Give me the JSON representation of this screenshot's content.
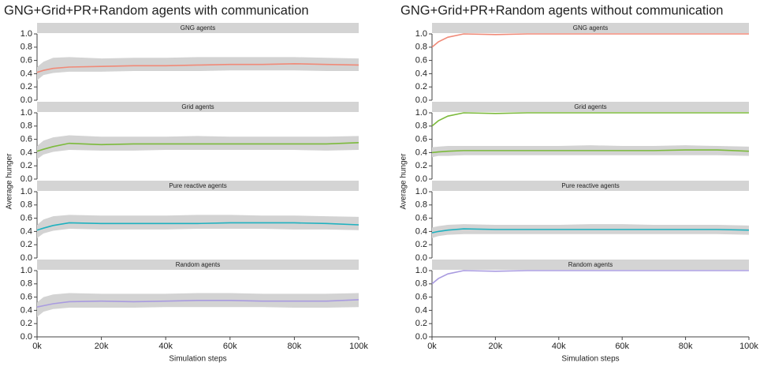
{
  "chart_data": [
    {
      "type": "line",
      "title": "GNG+Grid+PR+Random agents with communication",
      "xlabel": "Simulation steps",
      "ylabel": "Average hunger",
      "xlim": [
        0,
        100000
      ],
      "xticks": [
        {
          "value": 0,
          "label": "0k"
        },
        {
          "value": 20000,
          "label": "20k"
        },
        {
          "value": 40000,
          "label": "40k"
        },
        {
          "value": 60000,
          "label": "60k"
        },
        {
          "value": 80000,
          "label": "80k"
        },
        {
          "value": 100000,
          "label": "100k"
        }
      ],
      "ylim": [
        0,
        1
      ],
      "yticks": [
        {
          "value": 0,
          "label": "0.0"
        },
        0.2,
        0.4,
        0.6,
        0.8,
        {
          "value": 1,
          "label": "1.0"
        }
      ],
      "x": [
        0,
        2000,
        5000,
        10000,
        20000,
        30000,
        40000,
        50000,
        60000,
        70000,
        80000,
        90000,
        100000
      ],
      "facets": [
        {
          "name": "GNG agents",
          "color": "#f08a78",
          "series": [
            {
              "values": [
                0.42,
                0.45,
                0.48,
                0.5,
                0.51,
                0.52,
                0.52,
                0.53,
                0.54,
                0.54,
                0.55,
                0.54,
                0.53
              ],
              "lower": [
                0.3,
                0.38,
                0.41,
                0.43,
                0.43,
                0.44,
                0.44,
                0.44,
                0.45,
                0.45,
                0.45,
                0.44,
                0.44
              ],
              "upper": [
                0.5,
                0.58,
                0.64,
                0.65,
                0.63,
                0.64,
                0.64,
                0.65,
                0.65,
                0.65,
                0.65,
                0.64,
                0.63
              ]
            }
          ]
        },
        {
          "name": "Grid agents",
          "color": "#7cba3c",
          "series": [
            {
              "values": [
                0.42,
                0.45,
                0.49,
                0.54,
                0.52,
                0.53,
                0.53,
                0.53,
                0.53,
                0.53,
                0.53,
                0.53,
                0.55
              ],
              "lower": [
                0.3,
                0.37,
                0.41,
                0.44,
                0.43,
                0.43,
                0.44,
                0.44,
                0.44,
                0.44,
                0.44,
                0.43,
                0.44
              ],
              "upper": [
                0.5,
                0.58,
                0.63,
                0.66,
                0.64,
                0.64,
                0.64,
                0.65,
                0.64,
                0.64,
                0.64,
                0.64,
                0.65
              ]
            }
          ]
        },
        {
          "name": "Pure reactive agents",
          "color": "#1fb1bf",
          "series": [
            {
              "values": [
                0.42,
                0.45,
                0.49,
                0.53,
                0.52,
                0.52,
                0.52,
                0.52,
                0.53,
                0.53,
                0.53,
                0.52,
                0.5
              ],
              "lower": [
                0.3,
                0.37,
                0.41,
                0.44,
                0.43,
                0.43,
                0.43,
                0.44,
                0.44,
                0.44,
                0.43,
                0.43,
                0.42
              ],
              "upper": [
                0.5,
                0.58,
                0.63,
                0.65,
                0.64,
                0.64,
                0.64,
                0.65,
                0.65,
                0.64,
                0.64,
                0.63,
                0.62
              ]
            }
          ]
        },
        {
          "name": "Random agents",
          "color": "#a99be0",
          "series": [
            {
              "values": [
                0.45,
                0.47,
                0.5,
                0.53,
                0.54,
                0.53,
                0.54,
                0.55,
                0.55,
                0.54,
                0.54,
                0.54,
                0.56
              ],
              "lower": [
                0.3,
                0.38,
                0.42,
                0.44,
                0.44,
                0.44,
                0.45,
                0.45,
                0.45,
                0.45,
                0.44,
                0.44,
                0.45
              ],
              "upper": [
                0.52,
                0.6,
                0.64,
                0.66,
                0.65,
                0.65,
                0.65,
                0.66,
                0.66,
                0.65,
                0.65,
                0.65,
                0.66
              ]
            }
          ]
        }
      ]
    },
    {
      "type": "line",
      "title": "GNG+Grid+PR+Random agents without communication",
      "xlabel": "Simulation steps",
      "ylabel": "Average hunger",
      "xlim": [
        0,
        100000
      ],
      "xticks": [
        {
          "value": 0,
          "label": "0k"
        },
        {
          "value": 20000,
          "label": "20k"
        },
        {
          "value": 40000,
          "label": "40k"
        },
        {
          "value": 60000,
          "label": "60k"
        },
        {
          "value": 80000,
          "label": "80k"
        },
        {
          "value": 100000,
          "label": "100k"
        }
      ],
      "ylim": [
        0,
        1
      ],
      "yticks": [
        {
          "value": 0,
          "label": "0.0"
        },
        0.2,
        0.4,
        0.6,
        0.8,
        {
          "value": 1,
          "label": "1.0"
        }
      ],
      "x": [
        0,
        2000,
        5000,
        10000,
        20000,
        30000,
        40000,
        50000,
        60000,
        70000,
        80000,
        90000,
        100000
      ],
      "facets": [
        {
          "name": "GNG agents",
          "color": "#f08a78",
          "series": [
            {
              "values": [
                0.8,
                0.88,
                0.95,
                1,
                0.99,
                1,
                1,
                1,
                1,
                1,
                1,
                1,
                1
              ]
            }
          ]
        },
        {
          "name": "Grid agents",
          "color": "#7cba3c",
          "series": [
            {
              "values": [
                0.8,
                0.88,
                0.95,
                1,
                0.99,
                1,
                1,
                1,
                1,
                1,
                1,
                1,
                1
              ]
            },
            {
              "values": [
                0.4,
                0.41,
                0.42,
                0.43,
                0.43,
                0.43,
                0.43,
                0.43,
                0.43,
                0.43,
                0.44,
                0.44,
                0.42
              ],
              "lower": [
                0.33,
                0.35,
                0.35,
                0.36,
                0.36,
                0.36,
                0.36,
                0.36,
                0.36,
                0.36,
                0.36,
                0.36,
                0.35
              ],
              "upper": [
                0.48,
                0.49,
                0.5,
                0.5,
                0.5,
                0.5,
                0.5,
                0.51,
                0.5,
                0.5,
                0.51,
                0.5,
                0.49
              ]
            }
          ]
        },
        {
          "name": "Pure reactive agents",
          "color": "#1fb1bf",
          "series": [
            {
              "values": [
                0.38,
                0.4,
                0.42,
                0.44,
                0.43,
                0.43,
                0.43,
                0.43,
                0.43,
                0.43,
                0.43,
                0.43,
                0.42
              ],
              "lower": [
                0.3,
                0.33,
                0.35,
                0.36,
                0.36,
                0.36,
                0.36,
                0.36,
                0.36,
                0.36,
                0.36,
                0.36,
                0.35
              ],
              "upper": [
                0.46,
                0.48,
                0.5,
                0.51,
                0.5,
                0.5,
                0.5,
                0.51,
                0.51,
                0.5,
                0.5,
                0.5,
                0.49
              ]
            }
          ]
        },
        {
          "name": "Random agents",
          "color": "#a99be0",
          "series": [
            {
              "values": [
                0.8,
                0.88,
                0.95,
                1,
                0.99,
                1,
                1,
                1,
                1,
                1,
                1,
                1,
                1
              ]
            }
          ]
        }
      ]
    }
  ]
}
